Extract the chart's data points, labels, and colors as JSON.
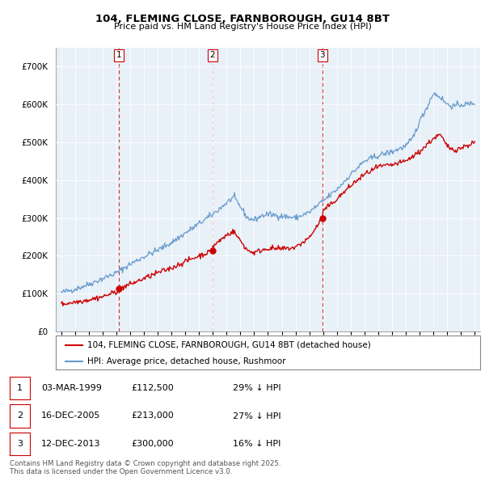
{
  "title": "104, FLEMING CLOSE, FARNBOROUGH, GU14 8BT",
  "subtitle": "Price paid vs. HM Land Registry's House Price Index (HPI)",
  "ylim": [
    0,
    750000
  ],
  "yticks": [
    0,
    100000,
    200000,
    300000,
    400000,
    500000,
    600000,
    700000
  ],
  "ytick_labels": [
    "£0",
    "£100K",
    "£200K",
    "£300K",
    "£400K",
    "£500K",
    "£600K",
    "£700K"
  ],
  "red_color": "#cc0000",
  "blue_color": "#6699cc",
  "chart_bg": "#e8f0f8",
  "bg_color": "#ffffff",
  "grid_color": "#ffffff",
  "sale_prices": [
    112500,
    213000,
    300000
  ],
  "sale_labels": [
    "1",
    "2",
    "3"
  ],
  "sale_year_floats": [
    1999.17,
    2005.96,
    2013.95
  ],
  "table_rows": [
    [
      "1",
      "03-MAR-1999",
      "£112,500",
      "29% ↓ HPI"
    ],
    [
      "2",
      "16-DEC-2005",
      "£213,000",
      "27% ↓ HPI"
    ],
    [
      "3",
      "12-DEC-2013",
      "£300,000",
      "16% ↓ HPI"
    ]
  ],
  "legend_red": "104, FLEMING CLOSE, FARNBOROUGH, GU14 8BT (detached house)",
  "legend_blue": "HPI: Average price, detached house, Rushmoor",
  "footnote": "Contains HM Land Registry data © Crown copyright and database right 2025.\nThis data is licensed under the Open Government Licence v3.0.",
  "xlim_start": 1994.6,
  "xlim_end": 2025.4
}
